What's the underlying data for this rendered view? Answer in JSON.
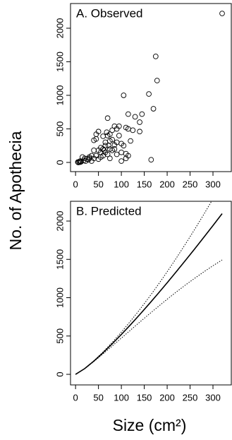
{
  "y_label": "No. of Apothecia",
  "x_label": "Size (cm²)",
  "chart_data": [
    {
      "type": "scatter",
      "title": "A. Observed",
      "marker": "open-circle",
      "color": "#000000",
      "x": [
        320,
        175,
        178,
        105,
        160,
        170,
        145,
        115,
        110,
        115,
        130,
        140,
        140,
        120,
        95,
        85,
        90,
        80,
        70,
        75,
        70,
        60,
        65,
        55,
        50,
        45,
        45,
        40,
        40,
        35,
        40,
        50,
        55,
        60,
        65,
        70,
        75,
        80,
        85,
        90,
        100,
        100,
        105,
        110,
        110,
        125,
        100,
        115,
        165,
        60,
        55,
        65,
        75,
        30,
        25,
        20,
        15,
        10,
        5,
        8,
        10,
        12,
        6,
        18,
        22,
        28,
        35,
        30,
        45,
        50,
        80,
        85,
        95,
        90,
        75,
        68,
        62,
        72
      ],
      "values": [
        2220,
        1580,
        1220,
        1000,
        1020,
        800,
        720,
        720,
        520,
        500,
        680,
        600,
        460,
        320,
        540,
        540,
        500,
        480,
        660,
        420,
        400,
        390,
        300,
        220,
        460,
        420,
        350,
        330,
        180,
        100,
        60,
        50,
        150,
        200,
        250,
        120,
        200,
        180,
        260,
        300,
        280,
        150,
        250,
        130,
        60,
        480,
        20,
        100,
        40,
        100,
        80,
        150,
        60,
        80,
        50,
        60,
        80,
        20,
        5,
        5,
        5,
        10,
        0,
        30,
        20,
        40,
        20,
        60,
        100,
        180,
        340,
        200,
        400,
        120,
        320,
        450,
        180,
        250
      ],
      "xlim": [
        -11,
        340
      ],
      "ylim": [
        -137,
        2368
      ],
      "xticks": [
        0,
        50,
        100,
        150,
        200,
        250,
        300
      ],
      "yticks": [
        0,
        500,
        1000,
        1500,
        2000
      ]
    },
    {
      "type": "line",
      "title": "B. Predicted",
      "x": [
        0,
        20,
        40,
        60,
        80,
        100,
        120,
        140,
        160,
        180,
        200,
        220,
        240,
        260,
        280,
        300,
        320
      ],
      "series": [
        {
          "color": "#000000",
          "linestyle": "solid",
          "values": [
            0,
            75,
            173,
            282,
            398,
            520,
            647,
            779,
            914,
            1053,
            1195,
            1340,
            1487,
            1636,
            1788,
            1941,
            2097
          ]
        },
        {
          "color": "#000000",
          "linestyle": "dotted",
          "values": [
            0,
            76,
            177,
            292,
            417,
            551,
            694,
            844,
            1002,
            1167,
            1338,
            1517,
            1701,
            1891,
            2088,
            2290,
            2500
          ]
        },
        {
          "color": "#000000",
          "linestyle": "dotted",
          "values": [
            0,
            74,
            167,
            267,
            369,
            473,
            577,
            681,
            782,
            882,
            980,
            1075,
            1166,
            1253,
            1337,
            1417,
            1493
          ]
        }
      ],
      "xlim": [
        -11,
        340
      ],
      "ylim": [
        -138,
        2258
      ],
      "xticks": [
        0,
        50,
        100,
        150,
        200,
        250,
        300
      ],
      "yticks": [
        0,
        500,
        1000,
        1500,
        2000
      ]
    }
  ]
}
